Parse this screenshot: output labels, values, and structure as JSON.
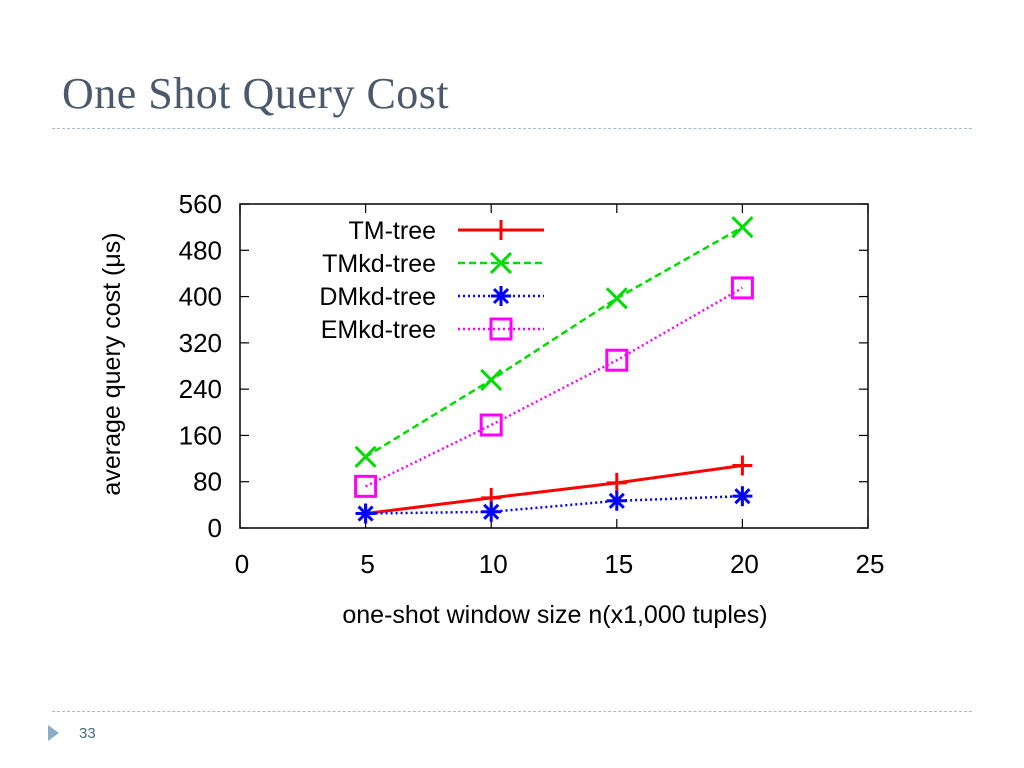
{
  "slide": {
    "title": "One Shot Query Cost",
    "number": "33"
  },
  "chart_data": {
    "type": "line",
    "title": "",
    "xlabel": "one-shot window size n(x1,000 tuples)",
    "ylabel": "average query cost (μs)",
    "xlim": [
      0,
      25
    ],
    "ylim": [
      0,
      560
    ],
    "xticks": [
      0,
      5,
      10,
      15,
      20,
      25
    ],
    "yticks": [
      0,
      80,
      160,
      240,
      320,
      400,
      480,
      560
    ],
    "grid": false,
    "legend_position": "top-left",
    "x": [
      5,
      10,
      15,
      20
    ],
    "series": [
      {
        "name": "TM-tree",
        "values": [
          25,
          52,
          78,
          108
        ],
        "color": "#ff0000",
        "dash": "solid",
        "marker": "plus"
      },
      {
        "name": "TMkd-tree",
        "values": [
          123,
          256,
          397,
          520
        ],
        "color": "#00dd00",
        "dash": "dashed",
        "marker": "cross"
      },
      {
        "name": "DMkd-tree",
        "values": [
          25,
          28,
          47,
          55
        ],
        "color": "#0000ff",
        "dash": "dotted",
        "marker": "star"
      },
      {
        "name": "EMkd-tree",
        "values": [
          72,
          178,
          290,
          415
        ],
        "color": "#ff00ff",
        "dash": "dotted",
        "marker": "square"
      }
    ]
  }
}
